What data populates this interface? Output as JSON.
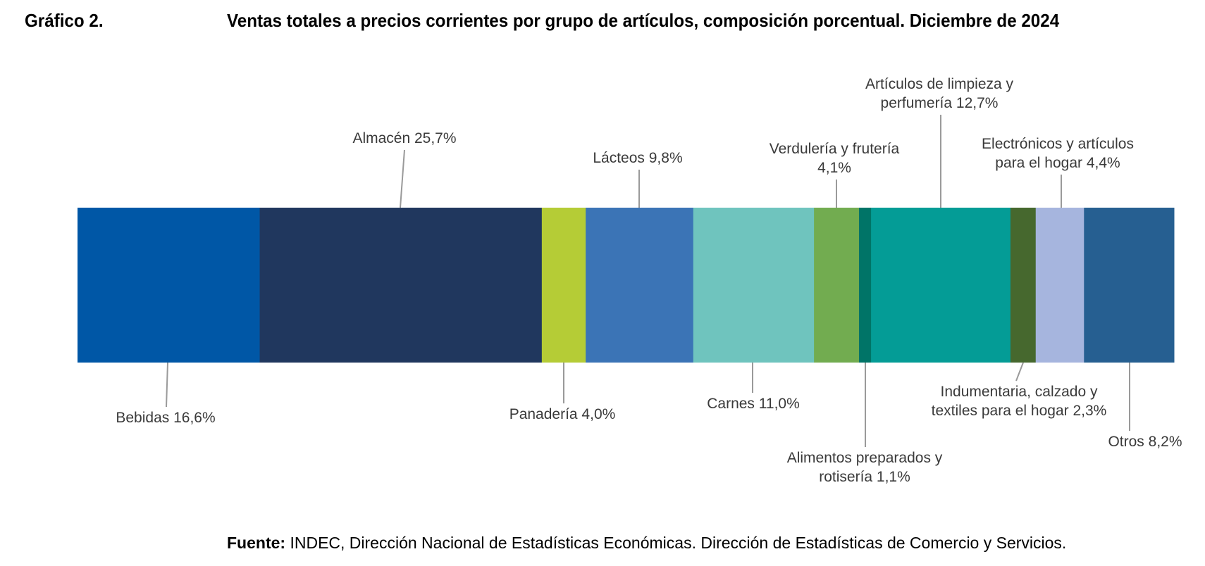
{
  "figure_label": "Gráfico 2.",
  "source": {
    "prefix": "Fuente:",
    "text": "INDEC, Dirección Nacional de Estadísticas Económicas. Dirección de Estadísticas de Comercio y Servicios."
  },
  "chart_data": {
    "type": "bar",
    "orientation": "horizontal-stacked",
    "title": "Ventas totales a precios corrientes por grupo de artículos, composición porcentual. Diciembre de 2024",
    "unit": "%",
    "segments": [
      {
        "name": "Bebidas",
        "value": 16.6,
        "value_label": "16,6%",
        "color": "#0057A6",
        "label_lines": [
          "Bebidas 16,6%"
        ],
        "label_side": "below"
      },
      {
        "name": "Almacén",
        "value": 25.7,
        "value_label": "25,7%",
        "color": "#20375E",
        "label_lines": [
          "Almacén 25,7%"
        ],
        "label_side": "above"
      },
      {
        "name": "Panadería",
        "value": 4.0,
        "value_label": "4,0%",
        "color": "#B5CC36",
        "label_lines": [
          "Panadería 4,0%"
        ],
        "label_side": "below"
      },
      {
        "name": "Lácteos",
        "value": 9.8,
        "value_label": "9,8%",
        "color": "#3B74B6",
        "label_lines": [
          "Lácteos 9,8%"
        ],
        "label_side": "above"
      },
      {
        "name": "Carnes",
        "value": 11.0,
        "value_label": "11,0%",
        "color": "#6FC4BE",
        "label_lines": [
          "Carnes 11,0%"
        ],
        "label_side": "below"
      },
      {
        "name": "Verdulería y frutería",
        "value": 4.1,
        "value_label": "4,1%",
        "color": "#72AC50",
        "label_lines": [
          "Verdulería y frutería",
          "4,1%"
        ],
        "label_side": "above"
      },
      {
        "name": "Alimentos preparados y rotisería",
        "value": 1.1,
        "value_label": "1,1%",
        "color": "#007467",
        "label_lines": [
          "Alimentos preparados y",
          "rotisería 1,1%"
        ],
        "label_side": "below"
      },
      {
        "name": "Artículos de limpieza y perfumería",
        "value": 12.7,
        "value_label": "12,7%",
        "color": "#049C96",
        "label_lines": [
          "Artículos de limpieza y",
          "perfumería 12,7%"
        ],
        "label_side": "above"
      },
      {
        "name": "Indumentaria, calzado y textiles para el hogar",
        "value": 2.3,
        "value_label": "2,3%",
        "color": "#46682E",
        "label_lines": [
          "Indumentaria, calzado y",
          "textiles para el hogar 2,3%"
        ],
        "label_side": "below"
      },
      {
        "name": "Electrónicos y artículos para el hogar",
        "value": 4.4,
        "value_label": "4,4%",
        "color": "#A6B5DE",
        "label_lines": [
          "Electrónicos y artículos",
          "para el hogar 4,4%"
        ],
        "label_side": "above"
      },
      {
        "name": "Otros",
        "value": 8.2,
        "value_label": "8,2%",
        "color": "#265F91",
        "label_lines": [
          "Otros 8,2%"
        ],
        "label_side": "below"
      }
    ]
  }
}
